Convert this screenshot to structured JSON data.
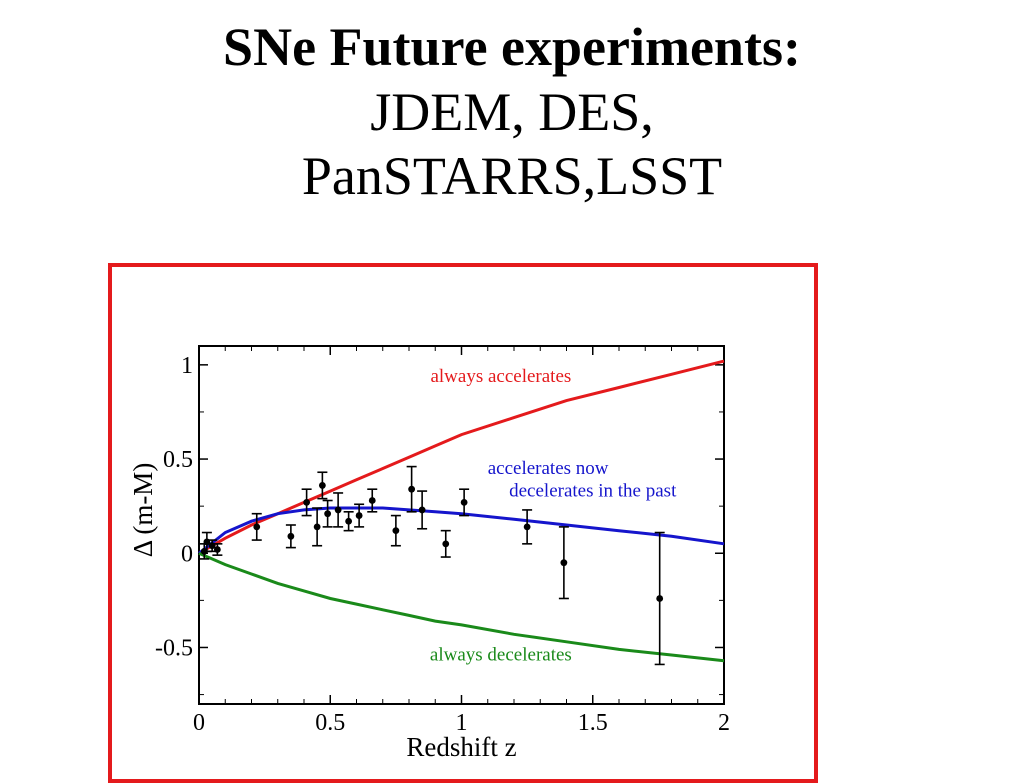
{
  "slide": {
    "title_bold": "SNe Future experiments:",
    "title_line2": "JDEM, DES,",
    "title_line3": "PanSTARRS,LSST"
  },
  "colors": {
    "frame": "#e41a1c",
    "accelerates": "#e41a1c",
    "now_past": "#1515cc",
    "decelerates": "#1a8a1a",
    "points": "#000000"
  },
  "chart_data": {
    "type": "scatter",
    "xlabel": "Redshift z",
    "ylabel": "Δ (m-M)",
    "xlim": [
      0,
      2
    ],
    "ylim": [
      -0.8,
      1.1
    ],
    "xticks": [
      0,
      0.5,
      1,
      1.5,
      2
    ],
    "xtick_labels": [
      "0",
      "0.5",
      "1",
      "1.5",
      "2"
    ],
    "yticks": [
      -0.5,
      0,
      0.5,
      1
    ],
    "ytick_labels": [
      "-0.5",
      "0",
      "0.5",
      "1"
    ],
    "grid": false,
    "series": [
      {
        "kind": "line",
        "color_key": "accelerates",
        "x": [
          0,
          0.1,
          0.2,
          0.3,
          0.4,
          0.5,
          0.6,
          0.7,
          0.8,
          0.9,
          1.0,
          1.2,
          1.4,
          1.6,
          1.8,
          2.0
        ],
        "y": [
          0,
          0.08,
          0.15,
          0.21,
          0.27,
          0.33,
          0.39,
          0.45,
          0.51,
          0.57,
          0.63,
          0.72,
          0.81,
          0.88,
          0.95,
          1.02
        ]
      },
      {
        "kind": "line",
        "color_key": "now_past",
        "x": [
          0,
          0.1,
          0.2,
          0.3,
          0.4,
          0.5,
          0.6,
          0.7,
          0.8,
          0.9,
          1.0,
          1.2,
          1.4,
          1.6,
          1.8,
          2.0
        ],
        "y": [
          0,
          0.11,
          0.17,
          0.21,
          0.23,
          0.24,
          0.24,
          0.24,
          0.23,
          0.22,
          0.21,
          0.18,
          0.15,
          0.12,
          0.09,
          0.05
        ]
      },
      {
        "kind": "line",
        "color_key": "decelerates",
        "x": [
          0,
          0.1,
          0.2,
          0.3,
          0.4,
          0.5,
          0.6,
          0.7,
          0.8,
          0.9,
          1.0,
          1.2,
          1.4,
          1.6,
          1.8,
          2.0
        ],
        "y": [
          0,
          -0.06,
          -0.11,
          -0.16,
          -0.2,
          -0.24,
          -0.27,
          -0.3,
          -0.33,
          -0.36,
          -0.38,
          -0.43,
          -0.47,
          -0.51,
          -0.54,
          -0.57
        ]
      },
      {
        "kind": "points",
        "color_key": "points",
        "points": [
          {
            "x": 0.02,
            "y": 0.01,
            "err": 0.04
          },
          {
            "x": 0.03,
            "y": 0.06,
            "err": 0.05
          },
          {
            "x": 0.05,
            "y": 0.04,
            "err": 0.03
          },
          {
            "x": 0.07,
            "y": 0.02,
            "err": 0.03
          },
          {
            "x": 0.22,
            "y": 0.14,
            "err": 0.07
          },
          {
            "x": 0.35,
            "y": 0.09,
            "err": 0.06
          },
          {
            "x": 0.41,
            "y": 0.27,
            "err": 0.07
          },
          {
            "x": 0.45,
            "y": 0.14,
            "err": 0.1
          },
          {
            "x": 0.47,
            "y": 0.36,
            "err": 0.07
          },
          {
            "x": 0.49,
            "y": 0.21,
            "err": 0.07
          },
          {
            "x": 0.53,
            "y": 0.23,
            "err": 0.09
          },
          {
            "x": 0.57,
            "y": 0.17,
            "err": 0.05
          },
          {
            "x": 0.61,
            "y": 0.2,
            "err": 0.06
          },
          {
            "x": 0.66,
            "y": 0.28,
            "err": 0.06
          },
          {
            "x": 0.75,
            "y": 0.12,
            "err": 0.08
          },
          {
            "x": 0.81,
            "y": 0.34,
            "err": 0.12
          },
          {
            "x": 0.85,
            "y": 0.23,
            "err": 0.1
          },
          {
            "x": 0.94,
            "y": 0.05,
            "err": 0.07
          },
          {
            "x": 1.01,
            "y": 0.27,
            "err": 0.07
          },
          {
            "x": 1.25,
            "y": 0.14,
            "err": 0.09
          },
          {
            "x": 1.39,
            "y": -0.05,
            "err": 0.19
          },
          {
            "x": 1.755,
            "y": -0.24,
            "err": 0.35
          }
        ]
      }
    ],
    "annotations": [
      {
        "text": "always accelerates",
        "color_key": "accelerates",
        "x": 1.15,
        "y": 0.91
      },
      {
        "text": "accelerates now",
        "color_key": "now_past",
        "x": 1.33,
        "y": 0.42
      },
      {
        "text": "decelerates in the past",
        "color_key": "now_past",
        "x": 1.5,
        "y": 0.3
      },
      {
        "text": "always decelerates",
        "color_key": "decelerates",
        "x": 1.15,
        "y": -0.57
      }
    ]
  }
}
